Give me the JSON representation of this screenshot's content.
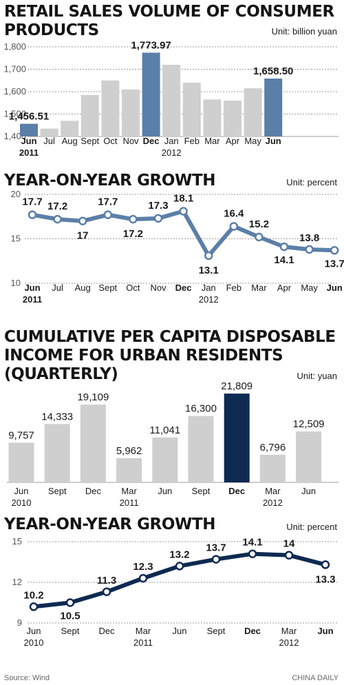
{
  "charts": [
    {
      "title": "RETAIL SALES VOLUME OF CONSUMER\nPRODUCTS",
      "unit": "Unit: billion yuan"
    },
    {
      "title": "YEAR-ON-YEAR GROWTH",
      "unit": "Unit: percent"
    },
    {
      "title": "CUMULATIVE PER CAPITA DISPOSABLE\nINCOME FOR URBAN RESIDENTS\n(QUARTERLY)",
      "unit": "Unit: yuan"
    },
    {
      "title": "YEAR-ON-YEAR GROWTH",
      "unit": "Unit: percent"
    }
  ],
  "footer": {
    "source": "Source: Wind",
    "credit": "CHINA DAILY"
  },
  "colors": {
    "bar_gray": "#cfcfcf",
    "bar_highlight": "#5a7fa8",
    "bar_dark": "#0e2a52",
    "line_steel": "#5a7fa8",
    "line_navy": "#0e2a52"
  },
  "chart_data": [
    {
      "type": "bar",
      "categories": [
        "Jun 2011",
        "Jul",
        "Aug",
        "Sept",
        "Oct",
        "Nov",
        "Dec",
        "Jan 2012",
        "Feb",
        "Mar",
        "Apr",
        "May",
        "Jun"
      ],
      "values": [
        1456.51,
        1435,
        1470,
        1585,
        1650,
        1610,
        1773.97,
        1720,
        1640,
        1565,
        1560,
        1615,
        1658.5
      ],
      "data_labels": [
        "1,456.51",
        "",
        "",
        "",
        "",
        "",
        "1,773.97",
        "",
        "",
        "",
        "",
        "",
        "1,658.50"
      ],
      "highlight": [
        0,
        6,
        12
      ],
      "ylim": [
        1400,
        1800
      ],
      "yticks": [
        "1,400",
        "1,500",
        "1,600",
        "1,700",
        "1,800"
      ],
      "grid": true
    },
    {
      "type": "line",
      "categories": [
        "Jun 2011",
        "Jul",
        "Aug",
        "Sept",
        "Oct",
        "Nov",
        "Dec",
        "Jan 2012",
        "Feb",
        "Mar",
        "Apr",
        "May",
        "Jun"
      ],
      "values": [
        17.7,
        17.2,
        17,
        17.7,
        17.2,
        17.3,
        18.1,
        13.1,
        16.4,
        15.2,
        14.1,
        13.8,
        13.7
      ],
      "data_labels": [
        "17.7",
        "17.2",
        "17",
        "17.7",
        "17.2",
        "17.3",
        "18.1",
        "13.1",
        "16.4",
        "15.2",
        "14.1",
        "13.8",
        "13.7"
      ],
      "ylim": [
        10,
        20
      ],
      "yticks": [
        "10",
        "15",
        "20"
      ],
      "grid": true
    },
    {
      "type": "bar",
      "categories": [
        "Jun 2010",
        "Sept",
        "Dec",
        "Mar 2011",
        "Jun",
        "Sept",
        "Dec",
        "Mar 2012",
        "Jun"
      ],
      "values": [
        9757,
        14333,
        19109,
        5962,
        11041,
        16300,
        21809,
        6796,
        12509
      ],
      "data_labels": [
        "9,757",
        "14,333",
        "19,109",
        "5,962",
        "11,041",
        "16,300",
        "21,809",
        "6,796",
        "12,509"
      ],
      "highlight": [
        6
      ],
      "ylim": [
        0,
        22000
      ],
      "grid": false
    },
    {
      "type": "line",
      "categories": [
        "Jun 2010",
        "Sept",
        "Dec",
        "Mar 2011",
        "Jun",
        "Sept",
        "Dec",
        "Mar 2012",
        "Jun"
      ],
      "values": [
        10.2,
        10.5,
        11.3,
        12.3,
        13.2,
        13.7,
        14.1,
        14,
        13.3
      ],
      "data_labels": [
        "10.2",
        "10.5",
        "11.3",
        "12.3",
        "13.2",
        "13.7",
        "14.1",
        "14",
        "13.3"
      ],
      "ylim": [
        9,
        15
      ],
      "yticks": [
        "9",
        "12",
        "15"
      ],
      "grid": true
    }
  ]
}
